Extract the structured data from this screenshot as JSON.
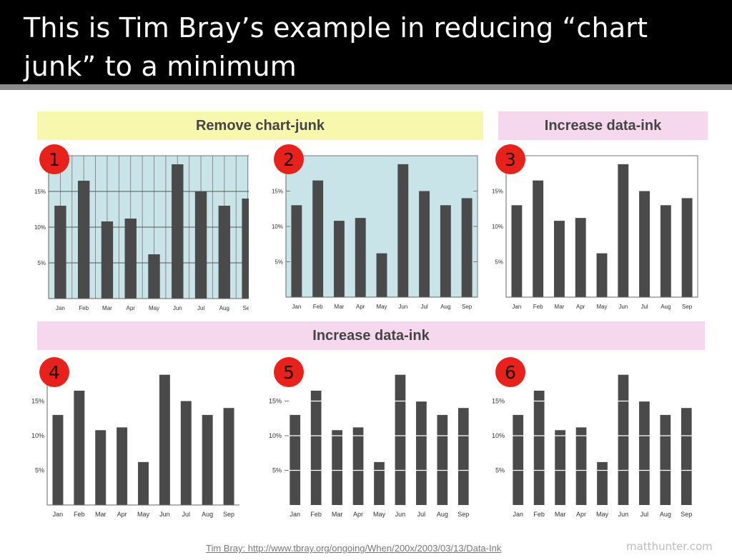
{
  "slide": {
    "title": "This is Tim Bray’s example in reducing “chart junk” to a minimum",
    "banner_top_left": "Remove chart-junk",
    "banner_top_right": "Increase data-ink",
    "banner_middle": "Increase data-ink",
    "source": "Tim Bray: http://www.tbray.org/ongoing/When/200x/2003/03/13/Data-Ink",
    "watermark": "matthunter.com"
  },
  "colors": {
    "bar": "#4a4a4a",
    "panel_bg_junk": "#c9e4e8",
    "badge": "#e8211a",
    "banner_yellow": "#f7f7ae",
    "banner_pink": "#f6d8ee"
  },
  "chart_data": [
    {
      "type": "bar",
      "badge": "1",
      "style": "full-grid-colored-background",
      "categories": [
        "Jan",
        "Feb",
        "Mar",
        "Apr",
        "May",
        "Jun",
        "Jul",
        "Aug",
        "Sep"
      ],
      "values": [
        13,
        16.5,
        10.8,
        11.2,
        6.2,
        18.8,
        15,
        13,
        14
      ],
      "yticks": [
        "5%",
        "10%",
        "15%"
      ],
      "ylim": [
        0,
        20
      ],
      "grid": "horizontal+vertical"
    },
    {
      "type": "bar",
      "badge": "2",
      "style": "colored-background-ticks",
      "categories": [
        "Jan",
        "Feb",
        "Mar",
        "Apr",
        "May",
        "Jun",
        "Jul",
        "Aug",
        "Sep"
      ],
      "values": [
        13,
        16.5,
        10.8,
        11.2,
        6.2,
        18.8,
        15,
        13,
        14
      ],
      "yticks": [
        "5%",
        "10%",
        "15%"
      ],
      "ylim": [
        0,
        20
      ],
      "grid": "none"
    },
    {
      "type": "bar",
      "badge": "3",
      "style": "white-background-framed",
      "categories": [
        "Jan",
        "Feb",
        "Mar",
        "Apr",
        "May",
        "Jun",
        "Jul",
        "Aug",
        "Sep"
      ],
      "values": [
        13,
        16.5,
        10.8,
        11.2,
        6.2,
        18.8,
        15,
        13,
        14
      ],
      "yticks": [
        "5%",
        "10%",
        "15%"
      ],
      "ylim": [
        0,
        20
      ],
      "grid": "none"
    },
    {
      "type": "bar",
      "badge": "4",
      "style": "axes-only",
      "categories": [
        "Jan",
        "Feb",
        "Mar",
        "Apr",
        "May",
        "Jun",
        "Jul",
        "Aug",
        "Sep"
      ],
      "values": [
        13,
        16.5,
        10.8,
        11.2,
        6.2,
        18.8,
        15,
        13,
        14
      ],
      "yticks": [
        "5%",
        "10%",
        "15%"
      ],
      "ylim": [
        0,
        20
      ],
      "grid": "none"
    },
    {
      "type": "bar",
      "badge": "5",
      "style": "no-frame-tick-marks",
      "categories": [
        "Jan",
        "Feb",
        "Mar",
        "Apr",
        "May",
        "Jun",
        "Jul",
        "Aug",
        "Sep"
      ],
      "values": [
        13,
        16.5,
        10.8,
        11.2,
        6.2,
        18.8,
        15,
        13,
        14
      ],
      "yticks": [
        "5%",
        "10%",
        "15%"
      ],
      "ylim": [
        0,
        20
      ],
      "grid": "white lines through bars"
    },
    {
      "type": "bar",
      "badge": "6",
      "style": "minimal-white-grid",
      "categories": [
        "Jan",
        "Feb",
        "Mar",
        "Apr",
        "May",
        "Jun",
        "Jul",
        "Aug",
        "Sep"
      ],
      "values": [
        13,
        16.5,
        10.8,
        11.2,
        6.2,
        18.8,
        15,
        13,
        14
      ],
      "yticks": [
        "5%",
        "10%",
        "15%"
      ],
      "ylim": [
        0,
        20
      ],
      "grid": "white lines through bars"
    }
  ]
}
